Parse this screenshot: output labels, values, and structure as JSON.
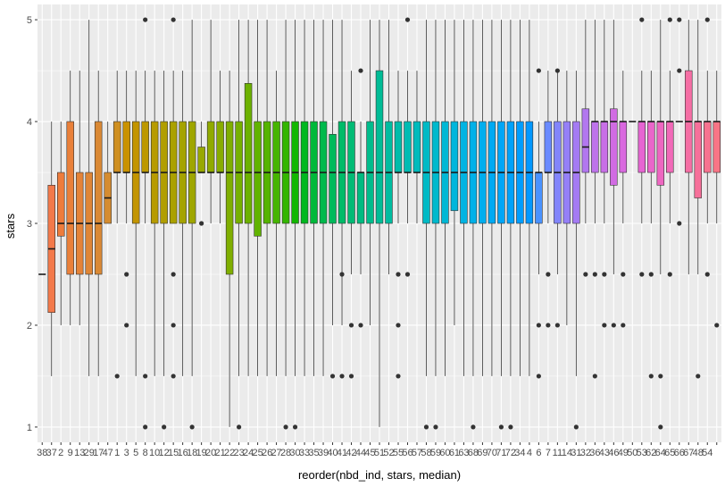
{
  "chart_data": {
    "type": "boxplot",
    "xlabel": "reorder(nbd_ind, stars, median)",
    "ylabel": "stars",
    "ylim": [
      0.85,
      5.15
    ],
    "y_ticks": [
      1,
      2,
      3,
      4,
      5
    ],
    "y_tick_labels": [
      "1",
      "2",
      "3",
      "4",
      "5"
    ],
    "grid": true,
    "panel_background": "#ebebeb",
    "grid_color": "#ffffff",
    "legend": "none",
    "categories": [
      "38",
      "37",
      "2",
      "9",
      "13",
      "29",
      "17",
      "47",
      "1",
      "3",
      "5",
      "8",
      "10",
      "12",
      "15",
      "16",
      "18",
      "19",
      "20",
      "21",
      "22",
      "23",
      "24",
      "25",
      "26",
      "27",
      "28",
      "30",
      "33",
      "35",
      "39",
      "40",
      "41",
      "42",
      "44",
      "45",
      "51",
      "52",
      "55",
      "56",
      "57",
      "58",
      "59",
      "60",
      "61",
      "63",
      "68",
      "69",
      "70",
      "71",
      "72",
      "34",
      "4",
      "6",
      "7",
      "11",
      "14",
      "31",
      "32",
      "36",
      "43",
      "46",
      "49",
      "50",
      "53",
      "62",
      "64",
      "65",
      "66",
      "67",
      "48",
      "54"
    ],
    "x_tick_labels": [
      "38",
      "37",
      "2",
      "9",
      "13",
      "29",
      "17",
      "47",
      "1",
      "3",
      "5",
      "8",
      "10",
      "12",
      "15",
      "16",
      "18",
      "19",
      "20",
      "21",
      "22",
      "23",
      "24",
      "25",
      "26",
      "27",
      "28",
      "30",
      "33",
      "35",
      "39",
      "40",
      "41",
      "42",
      "44",
      "45",
      "51",
      "52",
      "55",
      "56",
      "57",
      "58",
      "59",
      "60",
      "61",
      "63",
      "68",
      "69",
      "70",
      "71",
      "72",
      "34",
      "4",
      "6",
      "7",
      "11",
      "14",
      "31",
      "32",
      "36",
      "43",
      "46",
      "49",
      "50",
      "53",
      "62",
      "64",
      "65",
      "66",
      "67",
      "48",
      "54"
    ],
    "boxes": [
      {
        "c": "#f8766d",
        "q1": 2.5,
        "med": 2.5,
        "q3": 2.5,
        "lo": 2.5,
        "hi": 2.5,
        "out": []
      },
      {
        "c": "#f3794a",
        "q1": 2.125,
        "med": 2.75,
        "q3": 3.375,
        "lo": 1.5,
        "hi": 4.0,
        "out": []
      },
      {
        "c": "#ee7c3c",
        "q1": 2.875,
        "med": 3.0,
        "q3": 3.5,
        "lo": 2.0,
        "hi": 4.0,
        "out": []
      },
      {
        "c": "#e9803a",
        "q1": 2.5,
        "med": 3.0,
        "q3": 4.0,
        "lo": 2.0,
        "hi": 4.5,
        "out": []
      },
      {
        "c": "#e48338",
        "q1": 2.5,
        "med": 3.0,
        "q3": 3.5,
        "lo": 2.0,
        "hi": 4.5,
        "out": []
      },
      {
        "c": "#df8636",
        "q1": 2.5,
        "med": 3.0,
        "q3": 3.5,
        "lo": 1.5,
        "hi": 5.0,
        "out": []
      },
      {
        "c": "#da8934",
        "q1": 2.5,
        "med": 3.0,
        "q3": 4.0,
        "lo": 1.5,
        "hi": 4.5,
        "out": []
      },
      {
        "c": "#d58c30",
        "q1": 3.0,
        "med": 3.25,
        "q3": 3.5,
        "lo": 3.0,
        "hi": 4.0,
        "out": []
      },
      {
        "c": "#cf8f20",
        "q1": 3.5,
        "med": 3.5,
        "q3": 4.0,
        "lo": 3.0,
        "hi": 4.5,
        "out": [
          1.5
        ]
      },
      {
        "c": "#c99200",
        "q1": 3.5,
        "med": 3.5,
        "q3": 4.0,
        "lo": 3.0,
        "hi": 4.5,
        "out": [
          2.5,
          2.0
        ]
      },
      {
        "c": "#c39500",
        "q1": 3.0,
        "med": 3.5,
        "q3": 4.0,
        "lo": 1.5,
        "hi": 4.5,
        "out": []
      },
      {
        "c": "#bd9800",
        "q1": 3.5,
        "med": 3.5,
        "q3": 4.0,
        "lo": 3.0,
        "hi": 4.5,
        "out": [
          5.0,
          1.5,
          1.0
        ]
      },
      {
        "c": "#b79b00",
        "q1": 3.0,
        "med": 3.5,
        "q3": 4.0,
        "lo": 1.5,
        "hi": 4.5,
        "out": []
      },
      {
        "c": "#b19e00",
        "q1": 3.0,
        "med": 3.5,
        "q3": 4.0,
        "lo": 1.5,
        "hi": 4.5,
        "out": [
          1.0
        ]
      },
      {
        "c": "#aba100",
        "q1": 3.0,
        "med": 3.5,
        "q3": 4.0,
        "lo": 3.0,
        "hi": 4.5,
        "out": [
          5.0,
          2.5,
          2.0,
          1.5
        ]
      },
      {
        "c": "#a5a300",
        "q1": 3.0,
        "med": 3.5,
        "q3": 4.0,
        "lo": 1.5,
        "hi": 4.5,
        "out": []
      },
      {
        "c": "#9fa600",
        "q1": 3.0,
        "med": 3.5,
        "q3": 4.0,
        "lo": 1.5,
        "hi": 5.0,
        "out": [
          1.0
        ]
      },
      {
        "c": "#98a800",
        "q1": 3.5,
        "med": 3.5,
        "q3": 3.75,
        "lo": 3.5,
        "hi": 4.0,
        "out": [
          3.0
        ]
      },
      {
        "c": "#90aa00",
        "q1": 3.5,
        "med": 3.5,
        "q3": 4.0,
        "lo": 3.0,
        "hi": 5.0,
        "out": []
      },
      {
        "c": "#88ac00",
        "q1": 3.5,
        "med": 3.5,
        "q3": 4.0,
        "lo": 3.0,
        "hi": 4.5,
        "out": []
      },
      {
        "c": "#7fae00",
        "q1": 2.5,
        "med": 3.5,
        "q3": 4.0,
        "lo": 1.0,
        "hi": 4.5,
        "out": []
      },
      {
        "c": "#76b000",
        "q1": 3.0,
        "med": 3.5,
        "q3": 4.0,
        "lo": 1.5,
        "hi": 5.0,
        "out": [
          1.0
        ]
      },
      {
        "c": "#6cb100",
        "q1": 3.0,
        "med": 3.5,
        "q3": 4.375,
        "lo": 1.5,
        "hi": 5.0,
        "out": []
      },
      {
        "c": "#61b300",
        "q1": 2.875,
        "med": 3.5,
        "q3": 4.0,
        "lo": 1.5,
        "hi": 5.0,
        "out": []
      },
      {
        "c": "#55b400",
        "q1": 3.0,
        "med": 3.5,
        "q3": 4.0,
        "lo": 1.5,
        "hi": 5.0,
        "out": []
      },
      {
        "c": "#46b500",
        "q1": 3.0,
        "med": 3.5,
        "q3": 4.0,
        "lo": 1.5,
        "hi": 4.5,
        "out": []
      },
      {
        "c": "#33b600",
        "q1": 3.0,
        "med": 3.5,
        "q3": 4.0,
        "lo": 1.5,
        "hi": 5.0,
        "out": [
          1.0
        ]
      },
      {
        "c": "#12b700",
        "q1": 3.0,
        "med": 3.5,
        "q3": 4.0,
        "lo": 1.5,
        "hi": 5.0,
        "out": [
          1.0
        ]
      },
      {
        "c": "#00b81f",
        "q1": 3.0,
        "med": 3.5,
        "q3": 4.0,
        "lo": 1.5,
        "hi": 5.0,
        "out": []
      },
      {
        "c": "#00b93a",
        "q1": 3.0,
        "med": 3.5,
        "q3": 4.0,
        "lo": 1.5,
        "hi": 5.0,
        "out": []
      },
      {
        "c": "#00ba4c",
        "q1": 3.0,
        "med": 3.5,
        "q3": 4.0,
        "lo": 1.5,
        "hi": 5.0,
        "out": []
      },
      {
        "c": "#00ba5b",
        "q1": 3.0,
        "med": 3.5,
        "q3": 3.875,
        "lo": 2.0,
        "hi": 5.0,
        "out": [
          1.5
        ]
      },
      {
        "c": "#00bb68",
        "q1": 3.0,
        "med": 3.5,
        "q3": 4.0,
        "lo": 2.0,
        "hi": 5.0,
        "out": [
          2.5,
          1.5
        ]
      },
      {
        "c": "#00bb75",
        "q1": 3.0,
        "med": 3.5,
        "q3": 4.0,
        "lo": 2.5,
        "hi": 4.5,
        "out": [
          2.0,
          1.5
        ]
      },
      {
        "c": "#00bb81",
        "q1": 3.0,
        "med": 3.5,
        "q3": 3.5,
        "lo": 2.5,
        "hi": 4.0,
        "out": [
          4.5,
          2.0
        ]
      },
      {
        "c": "#00bc8c",
        "q1": 3.0,
        "med": 3.5,
        "q3": 4.0,
        "lo": 2.0,
        "hi": 5.0,
        "out": []
      },
      {
        "c": "#00bc96",
        "q1": 3.0,
        "med": 3.5,
        "q3": 4.5,
        "lo": 1.0,
        "hi": 5.0,
        "out": []
      },
      {
        "c": "#00bca0",
        "q1": 3.0,
        "med": 3.5,
        "q3": 4.0,
        "lo": 2.5,
        "hi": 5.0,
        "out": []
      },
      {
        "c": "#00bcaa",
        "q1": 3.5,
        "med": 3.5,
        "q3": 4.0,
        "lo": 3.0,
        "hi": 4.5,
        "out": [
          2.5,
          2.0,
          1.5
        ]
      },
      {
        "c": "#00bcb3",
        "q1": 3.5,
        "med": 3.5,
        "q3": 4.0,
        "lo": 3.0,
        "hi": 4.5,
        "out": [
          5.0,
          2.5
        ]
      },
      {
        "c": "#00bbbc",
        "q1": 3.5,
        "med": 3.5,
        "q3": 4.0,
        "lo": 3.0,
        "hi": 4.5,
        "out": []
      },
      {
        "c": "#00bac5",
        "q1": 3.0,
        "med": 3.5,
        "q3": 4.0,
        "lo": 1.5,
        "hi": 5.0,
        "out": [
          1.0
        ]
      },
      {
        "c": "#00b9cd",
        "q1": 3.0,
        "med": 3.5,
        "q3": 4.0,
        "lo": 1.5,
        "hi": 5.0,
        "out": [
          1.0
        ]
      },
      {
        "c": "#00b8d5",
        "q1": 3.0,
        "med": 3.5,
        "q3": 4.0,
        "lo": 1.5,
        "hi": 5.0,
        "out": []
      },
      {
        "c": "#00b6dc",
        "q1": 3.125,
        "med": 3.5,
        "q3": 4.0,
        "lo": 2.0,
        "hi": 5.0,
        "out": []
      },
      {
        "c": "#00b4e3",
        "q1": 3.0,
        "med": 3.5,
        "q3": 4.0,
        "lo": 1.5,
        "hi": 5.0,
        "out": []
      },
      {
        "c": "#00b1e9",
        "q1": 3.0,
        "med": 3.5,
        "q3": 4.0,
        "lo": 1.5,
        "hi": 5.0,
        "out": [
          1.0
        ]
      },
      {
        "c": "#00aeee",
        "q1": 3.0,
        "med": 3.5,
        "q3": 4.0,
        "lo": 1.5,
        "hi": 5.0,
        "out": []
      },
      {
        "c": "#00aaf3",
        "q1": 3.0,
        "med": 3.5,
        "q3": 4.0,
        "lo": 1.5,
        "hi": 5.0,
        "out": []
      },
      {
        "c": "#00a6f7",
        "q1": 3.0,
        "med": 3.5,
        "q3": 4.0,
        "lo": 1.5,
        "hi": 5.0,
        "out": [
          1.0
        ]
      },
      {
        "c": "#00a2fb",
        "q1": 3.0,
        "med": 3.5,
        "q3": 4.0,
        "lo": 1.5,
        "hi": 5.0,
        "out": [
          1.0
        ]
      },
      {
        "c": "#009dfe",
        "q1": 3.0,
        "med": 3.5,
        "q3": 4.0,
        "lo": 1.5,
        "hi": 5.0,
        "out": []
      },
      {
        "c": "#0398ff",
        "q1": 3.0,
        "med": 3.5,
        "q3": 4.0,
        "lo": 1.5,
        "hi": 5.0,
        "out": []
      },
      {
        "c": "#4a92ff",
        "q1": 3.0,
        "med": 3.5,
        "q3": 3.5,
        "lo": 2.5,
        "hi": 4.0,
        "out": [
          4.5,
          2.0,
          1.5
        ]
      },
      {
        "c": "#6a8bff",
        "q1": 3.5,
        "med": 3.5,
        "q3": 4.0,
        "lo": 3.0,
        "hi": 4.5,
        "out": [
          2.5,
          2.0
        ]
      },
      {
        "c": "#8285fb",
        "q1": 3.0,
        "med": 3.5,
        "q3": 4.0,
        "lo": 2.5,
        "hi": 4.5,
        "out": [
          4.5,
          2.0
        ]
      },
      {
        "c": "#9580f7",
        "q1": 3.0,
        "med": 3.5,
        "q3": 4.0,
        "lo": 2.0,
        "hi": 4.5,
        "out": []
      },
      {
        "c": "#a47bf3",
        "q1": 3.0,
        "med": 3.5,
        "q3": 4.0,
        "lo": 1.5,
        "hi": 4.5,
        "out": [
          1.0
        ]
      },
      {
        "c": "#b277ef",
        "q1": 3.5,
        "med": 3.75,
        "q3": 4.125,
        "lo": 3.0,
        "hi": 5.0,
        "out": [
          2.5
        ]
      },
      {
        "c": "#be73eb",
        "q1": 3.5,
        "med": 4.0,
        "q3": 4.0,
        "lo": 3.0,
        "hi": 5.0,
        "out": [
          2.5,
          1.5
        ]
      },
      {
        "c": "#c86fe7",
        "q1": 3.5,
        "med": 4.0,
        "q3": 4.0,
        "lo": 3.0,
        "hi": 5.0,
        "out": [
          2.5,
          2.0
        ]
      },
      {
        "c": "#d16be3",
        "q1": 3.375,
        "med": 4.0,
        "q3": 4.125,
        "lo": 2.5,
        "hi": 5.0,
        "out": [
          2.0
        ]
      },
      {
        "c": "#d968df",
        "q1": 3.5,
        "med": 4.0,
        "q3": 4.0,
        "lo": 3.0,
        "hi": 4.5,
        "out": [
          2.5,
          2.0
        ]
      },
      {
        "c": "#e066d9",
        "q1": 4.0,
        "med": 4.0,
        "q3": 4.0,
        "lo": 4.0,
        "hi": 4.0,
        "out": []
      },
      {
        "c": "#e665d2",
        "q1": 3.5,
        "med": 4.0,
        "q3": 4.0,
        "lo": 3.0,
        "hi": 4.5,
        "out": [
          5.0,
          2.5
        ]
      },
      {
        "c": "#ea66ca",
        "q1": 3.5,
        "med": 4.0,
        "q3": 4.0,
        "lo": 3.0,
        "hi": 4.5,
        "out": [
          2.5,
          1.5
        ]
      },
      {
        "c": "#ee67c1",
        "q1": 3.375,
        "med": 4.0,
        "q3": 4.0,
        "lo": 2.5,
        "hi": 5.0,
        "out": [
          1.5,
          1.0
        ]
      },
      {
        "c": "#f169b8",
        "q1": 3.5,
        "med": 4.0,
        "q3": 4.0,
        "lo": 3.0,
        "hi": 4.5,
        "out": [
          5.0,
          2.5
        ]
      },
      {
        "c": "#f36bae",
        "q1": 4.0,
        "med": 4.0,
        "q3": 4.0,
        "lo": 4.0,
        "hi": 4.0,
        "out": [
          5.0,
          4.5,
          3.0
        ]
      },
      {
        "c": "#f56ea4",
        "q1": 3.5,
        "med": 4.0,
        "q3": 4.5,
        "lo": 2.5,
        "hi": 5.0,
        "out": []
      },
      {
        "c": "#f6709a",
        "q1": 3.25,
        "med": 4.0,
        "q3": 4.0,
        "lo": 2.5,
        "hi": 5.0,
        "out": [
          1.5
        ]
      },
      {
        "c": "#f77390",
        "q1": 3.5,
        "med": 4.0,
        "q3": 4.0,
        "lo": 3.0,
        "hi": 4.5,
        "out": [
          5.0,
          2.5
        ]
      },
      {
        "c": "#f87586",
        "q1": 3.5,
        "med": 4.0,
        "q3": 4.0,
        "lo": 3.0,
        "hi": 4.5,
        "out": [
          2.0
        ]
      }
    ]
  }
}
